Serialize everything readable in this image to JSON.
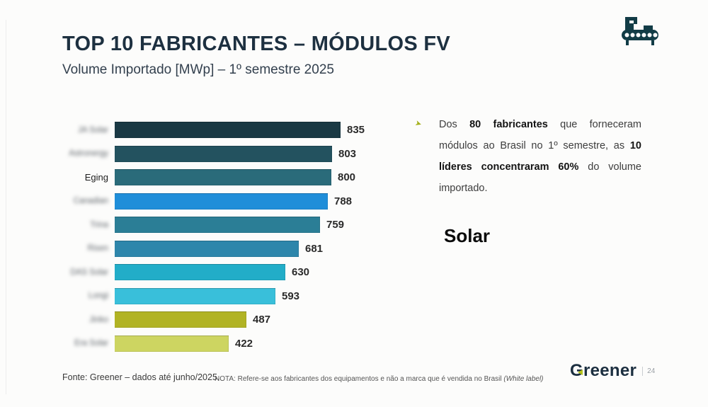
{
  "header": {
    "title": "TOP 10 FABRICANTES – MÓDULOS FV",
    "subtitle": "Volume Importado [MWp] – 1º semestre 2025",
    "corner_icon": "factory-conveyor-icon"
  },
  "chart_data": {
    "type": "bar",
    "orientation": "horizontal",
    "title": "TOP 10 FABRICANTES – MÓDULOS FV",
    "subtitle": "Volume Importado [MWp] – 1º semestre 2025",
    "unit": "MWp",
    "xlim": [
      0,
      900
    ],
    "grid": false,
    "legend": false,
    "categories": [
      "JA Solar",
      "Astronergy",
      "Eging",
      "Canadian",
      "Trina",
      "Risen",
      "DAS Solar",
      "Longi",
      "Jinko",
      "Era Solar"
    ],
    "values": [
      835,
      803,
      800,
      788,
      759,
      681,
      630,
      593,
      487,
      422
    ],
    "colors": [
      "#1a3944",
      "#23525f",
      "#2a6b7a",
      "#1f8ed9",
      "#2b7e96",
      "#2e86ab",
      "#22adc8",
      "#39bfda",
      "#b1b324",
      "#cdd561"
    ],
    "blurred_labels": [
      true,
      true,
      false,
      true,
      true,
      true,
      true,
      true,
      true,
      true
    ]
  },
  "annotation": {
    "bullet_icon": "greener-arrow-bullet-icon",
    "segments": [
      {
        "text": "Dos ",
        "bold": false
      },
      {
        "text": "80 fabricantes",
        "bold": true
      },
      {
        "text": " que forneceram módulos ao Brasil no 1º semestre, as ",
        "bold": false
      },
      {
        "text": "10 líderes concentraram 60%",
        "bold": true
      },
      {
        "text": " do volume importado.",
        "bold": false
      }
    ]
  },
  "overlay": {
    "solar_text": "Solar"
  },
  "footer": {
    "source": "Fonte: Greener – dados até junho/2025.",
    "note_prefix": "NOTA: Refere-se aos fabricantes dos equipamentos e não a marca que é vendida no Brasil ",
    "note_italic": "(White label)",
    "logo_text": "Greener",
    "page_number": "24"
  },
  "colors": {
    "brand_navy": "#1d3040",
    "accent_green": "#b6c41c",
    "bright_blue": "#1f8ed9"
  }
}
